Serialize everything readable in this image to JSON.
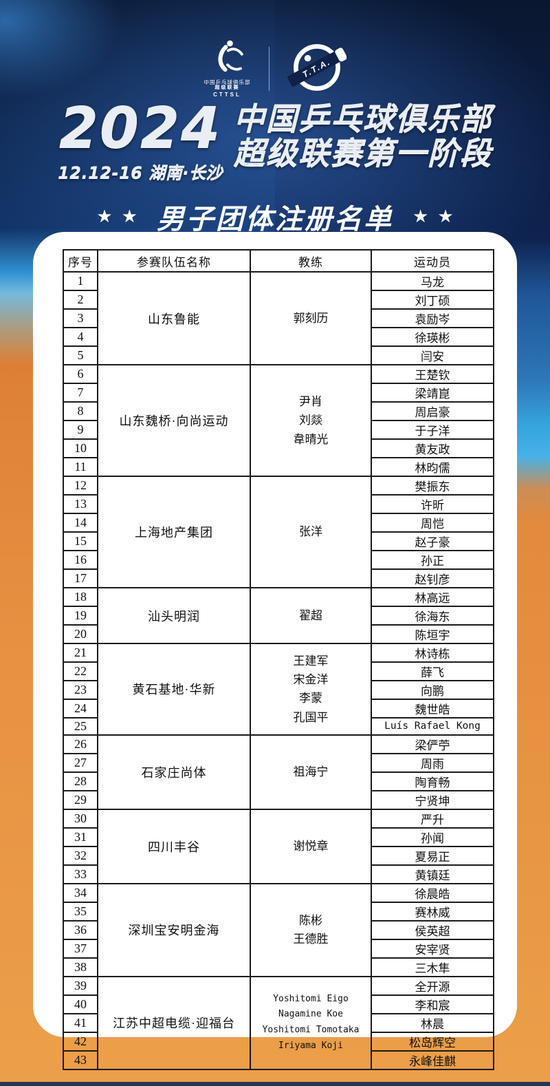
{
  "colors": {
    "background_navy": "#0d1d3b",
    "background_orange": "#ec9f49",
    "bright_blue": "#35a3dd",
    "card": "#ffffff",
    "table_border": "#1a1a1a",
    "title_silver": "#e9edf4",
    "star_white": "#ffffff"
  },
  "header": {
    "logo_left": {
      "line1": "中国乒乓球俱乐部",
      "line2": "超级联赛",
      "line3": "CTTSL"
    },
    "logo_right": {
      "text": "T.T.A."
    },
    "year": "2024",
    "date_location": "12.12-16 湖南·长沙",
    "title_line1": "中国乒乓球俱乐部",
    "title_line2": "超级联赛第一阶段",
    "subtitle": "男子团体注册名单",
    "star": "★"
  },
  "table": {
    "columns": [
      "序号",
      "参赛队伍名称",
      "教练",
      "运动员"
    ],
    "teams": [
      {
        "name": "山东鲁能",
        "coaches": [
          "郭刻历"
        ],
        "players": [
          {
            "no": 1,
            "name": "马龙"
          },
          {
            "no": 2,
            "name": "刘丁硕"
          },
          {
            "no": 3,
            "name": "袁励岑"
          },
          {
            "no": 4,
            "name": "徐瑛彬"
          },
          {
            "no": 5,
            "name": "闫安"
          }
        ]
      },
      {
        "name": "山东魏桥·向尚运动",
        "coaches": [
          "尹肖",
          "刘燚",
          "韋晴光"
        ],
        "players": [
          {
            "no": 6,
            "name": "王楚钦"
          },
          {
            "no": 7,
            "name": "梁靖崑"
          },
          {
            "no": 8,
            "name": "周启豪"
          },
          {
            "no": 9,
            "name": "于子洋"
          },
          {
            "no": 10,
            "name": "黄友政"
          },
          {
            "no": 11,
            "name": "林昀儒"
          }
        ]
      },
      {
        "name": "上海地产集团",
        "coaches": [
          "张洋"
        ],
        "players": [
          {
            "no": 12,
            "name": "樊振东"
          },
          {
            "no": 13,
            "name": "许昕"
          },
          {
            "no": 14,
            "name": "周恺"
          },
          {
            "no": 15,
            "name": "赵子豪"
          },
          {
            "no": 16,
            "name": "孙正"
          },
          {
            "no": 17,
            "name": "赵钊彦"
          }
        ]
      },
      {
        "name": "汕头明润",
        "coaches": [
          "翟超"
        ],
        "players": [
          {
            "no": 18,
            "name": "林高远"
          },
          {
            "no": 19,
            "name": "徐海东"
          },
          {
            "no": 20,
            "name": "陈垣宇"
          }
        ]
      },
      {
        "name": "黄石基地·华新",
        "coaches": [
          "王建军",
          "宋金洋",
          "李蒙",
          "孔国平"
        ],
        "players": [
          {
            "no": 21,
            "name": "林诗栋"
          },
          {
            "no": 22,
            "name": "薛飞"
          },
          {
            "no": 23,
            "name": "向鹏"
          },
          {
            "no": 24,
            "name": "魏世皓"
          },
          {
            "no": 25,
            "name": "Luís Rafael Kong"
          }
        ]
      },
      {
        "name": "石家庄尚体",
        "coaches": [
          "祖海宁"
        ],
        "players": [
          {
            "no": 26,
            "name": "梁俨苧"
          },
          {
            "no": 27,
            "name": "周雨"
          },
          {
            "no": 28,
            "name": "陶育畅"
          },
          {
            "no": 29,
            "name": "宁贤坤"
          }
        ]
      },
      {
        "name": "四川丰谷",
        "coaches": [
          "谢悦章"
        ],
        "players": [
          {
            "no": 30,
            "name": "严升"
          },
          {
            "no": 31,
            "name": "孙闻"
          },
          {
            "no": 32,
            "name": "夏易正"
          },
          {
            "no": 33,
            "name": "黄镇廷"
          }
        ]
      },
      {
        "name": "深圳宝安明金海",
        "coaches": [
          "陈彬",
          "王德胜"
        ],
        "players": [
          {
            "no": 34,
            "name": "徐晨皓"
          },
          {
            "no": 35,
            "name": "赛林威"
          },
          {
            "no": 36,
            "name": "侯英超"
          },
          {
            "no": 37,
            "name": "安宰贤"
          },
          {
            "no": 38,
            "name": "三木隼"
          }
        ]
      },
      {
        "name": "江苏中超电缆·迎福台",
        "coaches": [
          "Yoshitomi Eigo",
          "Nagamine Koe",
          "Yoshitomi Tomotaka",
          "Iriyama Koji"
        ],
        "players": [
          {
            "no": 39,
            "name": "全开源"
          },
          {
            "no": 40,
            "name": "李和宸"
          },
          {
            "no": 41,
            "name": "林晨"
          },
          {
            "no": 42,
            "name": "松岛辉空"
          },
          {
            "no": 43,
            "name": "永峰佳麒"
          }
        ]
      }
    ]
  }
}
